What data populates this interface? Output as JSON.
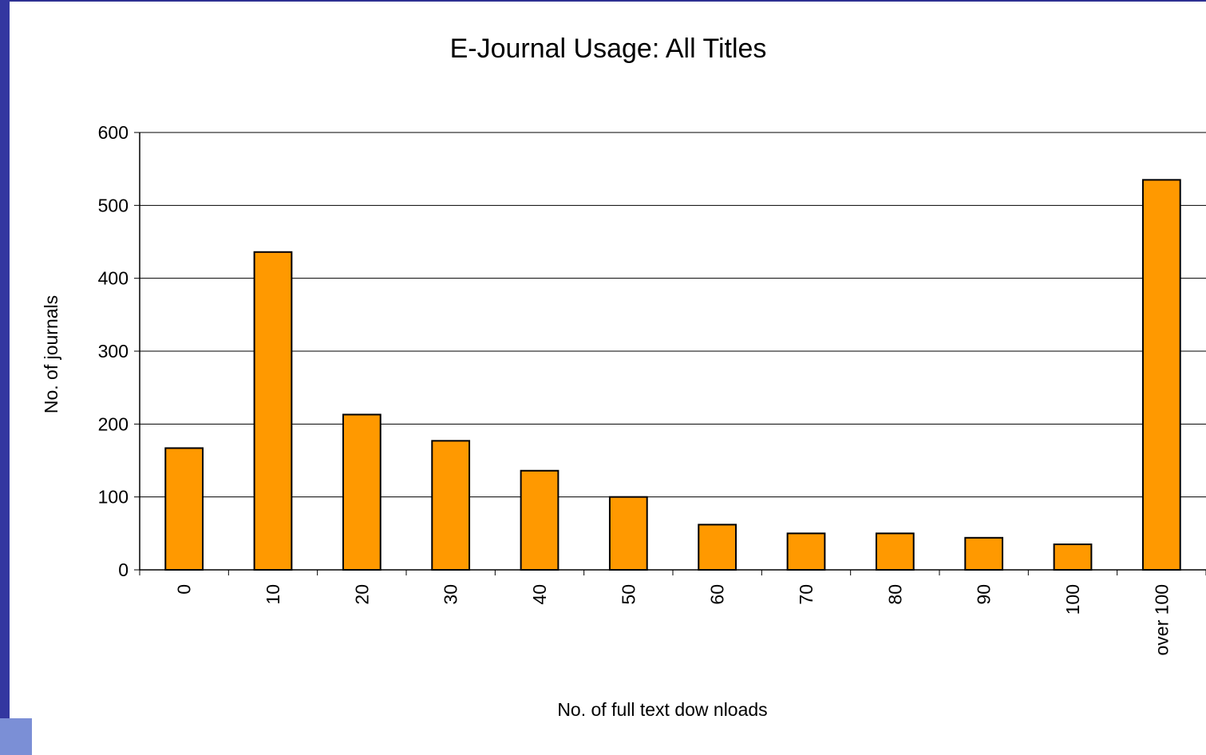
{
  "chart_data": {
    "type": "bar",
    "title": "E-Journal Usage: All Titles",
    "xlabel": "No. of full text dow nloads",
    "ylabel": "No. of journals",
    "categories": [
      "0",
      "10",
      "20",
      "30",
      "40",
      "50",
      "60",
      "70",
      "80",
      "90",
      "100",
      "over 100"
    ],
    "values": [
      167,
      436,
      213,
      177,
      136,
      100,
      62,
      50,
      50,
      44,
      35,
      535
    ],
    "ylim": [
      0,
      600
    ],
    "yticks": [
      0,
      100,
      200,
      300,
      400,
      500,
      600
    ],
    "grid": true,
    "legend": "none",
    "bar_color": "#ff9900",
    "bar_stroke": "#000000"
  }
}
